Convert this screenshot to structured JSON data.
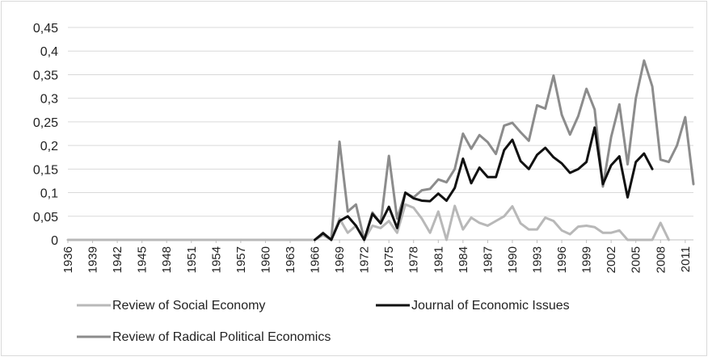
{
  "chart_data": {
    "type": "line",
    "title": "",
    "xlabel": "",
    "ylabel": "",
    "ylim": [
      0,
      0.45
    ],
    "y_ticks": [
      "0",
      "0,05",
      "0,1",
      "0,15",
      "0,2",
      "0,25",
      "0,3",
      "0,35",
      "0,4",
      "0,45"
    ],
    "x_tick_labels": [
      "1936",
      "1939",
      "1942",
      "1945",
      "1948",
      "1951",
      "1954",
      "1957",
      "1960",
      "1963",
      "1966",
      "1969",
      "1972",
      "1975",
      "1978",
      "1981",
      "1984",
      "1987",
      "1990",
      "1993",
      "1996",
      "1999",
      "2002",
      "2005",
      "2008",
      "2011"
    ],
    "grid": true,
    "legend_position": "bottom",
    "x": [
      1936,
      1937,
      1938,
      1939,
      1940,
      1941,
      1942,
      1943,
      1944,
      1945,
      1946,
      1947,
      1948,
      1949,
      1950,
      1951,
      1952,
      1953,
      1954,
      1955,
      1956,
      1957,
      1958,
      1959,
      1960,
      1961,
      1962,
      1963,
      1964,
      1965,
      1966,
      1967,
      1968,
      1969,
      1970,
      1971,
      1972,
      1973,
      1974,
      1975,
      1976,
      1977,
      1978,
      1979,
      1980,
      1981,
      1982,
      1983,
      1984,
      1985,
      1986,
      1987,
      1988,
      1989,
      1990,
      1991,
      1992,
      1993,
      1994,
      1995,
      1996,
      1997,
      1998,
      1999,
      2000,
      2001,
      2002,
      2003,
      2004,
      2005,
      2006,
      2007,
      2008,
      2009,
      2010,
      2011,
      2012
    ],
    "series": [
      {
        "name": "Review of Social Economy",
        "color": "#b8b8b8",
        "values": [
          0,
          0,
          0,
          0,
          0,
          0,
          0,
          0,
          0,
          0,
          0,
          0,
          0,
          0,
          0,
          0,
          0,
          0,
          0,
          0,
          0,
          0,
          0,
          0,
          0,
          0,
          0,
          0,
          0,
          0,
          0,
          0.01,
          0,
          0.045,
          0.015,
          0.03,
          0,
          0.03,
          0.025,
          0.04,
          0.015,
          0.075,
          0.068,
          0.045,
          0.015,
          0.06,
          0,
          0.072,
          0.022,
          0.047,
          0.036,
          0.03,
          0.04,
          0.05,
          0.071,
          0.035,
          0.022,
          0.022,
          0.047,
          0.04,
          0.02,
          0.012,
          0.028,
          0.03,
          0.027,
          0.015,
          0.015,
          0.02,
          0,
          0,
          0,
          0,
          0.036,
          0,
          null,
          null,
          null
        ]
      },
      {
        "name": "Journal of Economic Issues",
        "color": "#111111",
        "values": [
          null,
          null,
          null,
          null,
          null,
          null,
          null,
          null,
          null,
          null,
          null,
          null,
          null,
          null,
          null,
          null,
          null,
          null,
          null,
          null,
          null,
          null,
          null,
          null,
          null,
          null,
          null,
          null,
          null,
          null,
          0,
          0.014,
          0,
          0.04,
          0.05,
          0.03,
          0,
          0.055,
          0.035,
          0.07,
          0.025,
          0.1,
          0.088,
          0.083,
          0.082,
          0.098,
          0.083,
          0.11,
          0.172,
          0.12,
          0.153,
          0.133,
          0.133,
          0.19,
          0.212,
          0.167,
          0.15,
          0.18,
          0.195,
          0.175,
          0.162,
          0.142,
          0.15,
          0.165,
          0.238,
          0.118,
          0.158,
          0.177,
          0.09,
          0.165,
          0.183,
          0.15,
          null,
          null,
          null,
          null,
          null
        ]
      },
      {
        "name": "Review of Radical Political Economics",
        "color": "#8c8c8c",
        "values": [
          null,
          null,
          null,
          null,
          null,
          null,
          null,
          null,
          null,
          null,
          null,
          null,
          null,
          null,
          null,
          null,
          null,
          null,
          null,
          null,
          null,
          null,
          null,
          null,
          null,
          null,
          null,
          null,
          null,
          null,
          0,
          0.015,
          0,
          0.208,
          0.06,
          0.075,
          0,
          0.058,
          0.035,
          0.178,
          0.045,
          0.1,
          0.09,
          0.105,
          0.108,
          0.128,
          0.122,
          0.15,
          0.225,
          0.193,
          0.222,
          0.207,
          0.182,
          0.242,
          0.248,
          0.228,
          0.21,
          0.285,
          0.278,
          0.348,
          0.265,
          0.223,
          0.262,
          0.32,
          0.276,
          0.113,
          0.218,
          0.287,
          0.16,
          0.3,
          0.38,
          0.325,
          0.17,
          0.165,
          0.2,
          0.26,
          0.118
        ]
      }
    ]
  }
}
